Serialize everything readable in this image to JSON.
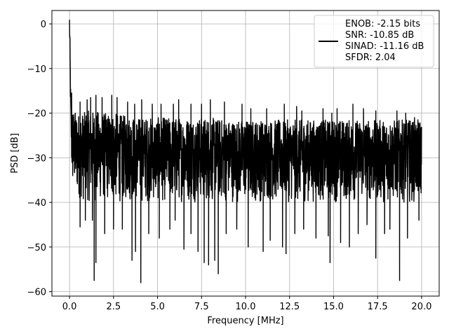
{
  "chart_data": {
    "type": "line",
    "title": "",
    "xlabel": "Frequency [MHz]",
    "ylabel": "PSD [dB]",
    "xlim": [
      -1.0,
      21.0
    ],
    "ylim": [
      -61.0,
      3.0
    ],
    "xticks": [
      0.0,
      2.5,
      5.0,
      7.5,
      10.0,
      12.5,
      15.0,
      17.5,
      20.0
    ],
    "xtick_labels": [
      "0.0",
      "2.5",
      "5.0",
      "7.5",
      "10.0",
      "12.5",
      "15.0",
      "17.5",
      "20.0"
    ],
    "yticks": [
      0,
      -10,
      -20,
      -30,
      -40,
      -50,
      -60
    ],
    "ytick_labels": [
      "0",
      "−10",
      "−20",
      "−30",
      "−40",
      "−50",
      "−60"
    ],
    "grid": true,
    "legend_position": "top-right",
    "legend_lines": [
      "ENOB: -2.15 bits",
      "SNR: -10.85 dB",
      "SINAD: -11.16 dB",
      "SFDR: 2.04"
    ],
    "line_color": "#000000",
    "series": [
      {
        "x": [
          0.0,
          0.02,
          0.04,
          0.06,
          0.08,
          0.1,
          0.12,
          0.15,
          0.2,
          0.3,
          0.4,
          0.5,
          0.75,
          1.0,
          1.5,
          2.0,
          2.5,
          3.0,
          3.5,
          4.0,
          5.0,
          6.0,
          7.0,
          8.0,
          9.0,
          10.0,
          11.0,
          12.0,
          13.0,
          14.0,
          15.0,
          16.0,
          17.0,
          18.0,
          19.0,
          20.0
        ],
        "y": [
          0,
          -4,
          -10,
          -16,
          -21,
          -24,
          -26,
          -27,
          -28,
          -29,
          -29.5,
          -30,
          -30,
          -30,
          -30,
          -30,
          -30,
          -30,
          -30,
          -30,
          -30,
          -30,
          -30,
          -30,
          -30,
          -30,
          -30,
          -30,
          -30,
          -30,
          -30,
          -30,
          -30,
          -30,
          -30,
          -30
        ],
        "upper_envelope": [
          0,
          -2,
          -6,
          -12,
          -16,
          -17,
          -18,
          -18.5,
          -19,
          -19.5,
          -20,
          -20,
          -20,
          -19.5,
          -19.5,
          -20,
          -20,
          -20.5,
          -20.5,
          -21,
          -21,
          -21,
          -21,
          -21,
          -21.5,
          -21.5,
          -21.5,
          -21.5,
          -21.5,
          -21.5,
          -21.5,
          -21.5,
          -21.5,
          -21.5,
          -21.5,
          -21.5
        ],
        "lower_envelope": [
          0,
          -10,
          -15,
          -20,
          -27,
          -32,
          -35,
          -37,
          -38,
          -38,
          -39,
          -39,
          -40,
          -40,
          -40,
          -40,
          -40,
          -40,
          -40,
          -40,
          -40,
          -40,
          -40,
          -40,
          -40,
          -40,
          -40,
          -40,
          -40,
          -40,
          -40,
          -40,
          -40,
          -40,
          -40,
          -40
        ],
        "deep_notches": [
          {
            "x": 0.6,
            "y": -45.5
          },
          {
            "x": 0.9,
            "y": -44
          },
          {
            "x": 1.3,
            "y": -44
          },
          {
            "x": 1.4,
            "y": -57.5
          },
          {
            "x": 1.5,
            "y": -53.5
          },
          {
            "x": 2.0,
            "y": -47
          },
          {
            "x": 2.5,
            "y": -46
          },
          {
            "x": 3.0,
            "y": -46
          },
          {
            "x": 3.55,
            "y": -53
          },
          {
            "x": 3.75,
            "y": -51
          },
          {
            "x": 4.05,
            "y": -58
          },
          {
            "x": 4.5,
            "y": -47
          },
          {
            "x": 5.1,
            "y": -48
          },
          {
            "x": 5.7,
            "y": -46
          },
          {
            "x": 6.0,
            "y": -44
          },
          {
            "x": 6.5,
            "y": -50.5
          },
          {
            "x": 6.9,
            "y": -47
          },
          {
            "x": 7.3,
            "y": -51
          },
          {
            "x": 7.65,
            "y": -53.5
          },
          {
            "x": 7.9,
            "y": -54
          },
          {
            "x": 8.25,
            "y": -53
          },
          {
            "x": 8.45,
            "y": -56
          },
          {
            "x": 8.9,
            "y": -47
          },
          {
            "x": 9.5,
            "y": -46
          },
          {
            "x": 10.15,
            "y": -50
          },
          {
            "x": 11.0,
            "y": -51
          },
          {
            "x": 11.4,
            "y": -48.5
          },
          {
            "x": 12.1,
            "y": -50
          },
          {
            "x": 12.3,
            "y": -51.5
          },
          {
            "x": 12.8,
            "y": -47
          },
          {
            "x": 13.3,
            "y": -46
          },
          {
            "x": 14.0,
            "y": -48
          },
          {
            "x": 14.7,
            "y": -47.5
          },
          {
            "x": 14.8,
            "y": -53.5
          },
          {
            "x": 15.4,
            "y": -49
          },
          {
            "x": 15.9,
            "y": -50
          },
          {
            "x": 16.4,
            "y": -47
          },
          {
            "x": 16.9,
            "y": -45
          },
          {
            "x": 17.4,
            "y": -52.5
          },
          {
            "x": 17.9,
            "y": -47
          },
          {
            "x": 18.2,
            "y": -46
          },
          {
            "x": 18.75,
            "y": -57.5
          },
          {
            "x": 19.2,
            "y": -48
          },
          {
            "x": 19.85,
            "y": -44
          }
        ],
        "tall_spikes": [
          {
            "x": 0.12,
            "y": -15.5
          },
          {
            "x": 0.6,
            "y": -17.5
          },
          {
            "x": 1.0,
            "y": -17
          },
          {
            "x": 1.2,
            "y": -16.5
          },
          {
            "x": 1.5,
            "y": -16
          },
          {
            "x": 1.85,
            "y": -16.5
          },
          {
            "x": 2.4,
            "y": -16
          },
          {
            "x": 2.7,
            "y": -16.5
          },
          {
            "x": 3.3,
            "y": -17.5
          },
          {
            "x": 3.7,
            "y": -18
          },
          {
            "x": 4.1,
            "y": -17
          },
          {
            "x": 4.7,
            "y": -18
          },
          {
            "x": 5.2,
            "y": -18
          },
          {
            "x": 5.9,
            "y": -18
          },
          {
            "x": 6.2,
            "y": -17
          },
          {
            "x": 6.9,
            "y": -18
          },
          {
            "x": 7.5,
            "y": -18
          },
          {
            "x": 8.0,
            "y": -17
          },
          {
            "x": 8.8,
            "y": -17.5
          },
          {
            "x": 9.8,
            "y": -18
          },
          {
            "x": 10.3,
            "y": -19
          },
          {
            "x": 11.2,
            "y": -19
          },
          {
            "x": 12.2,
            "y": -18
          },
          {
            "x": 12.9,
            "y": -18.5
          },
          {
            "x": 13.2,
            "y": -19.5
          },
          {
            "x": 14.4,
            "y": -19
          },
          {
            "x": 14.9,
            "y": -20
          },
          {
            "x": 15.2,
            "y": -19
          },
          {
            "x": 16.1,
            "y": -18
          },
          {
            "x": 16.7,
            "y": -19
          },
          {
            "x": 17.4,
            "y": -19.5
          },
          {
            "x": 18.6,
            "y": -19.5
          },
          {
            "x": 19.1,
            "y": -20
          },
          {
            "x": 19.6,
            "y": -21
          }
        ]
      }
    ]
  }
}
